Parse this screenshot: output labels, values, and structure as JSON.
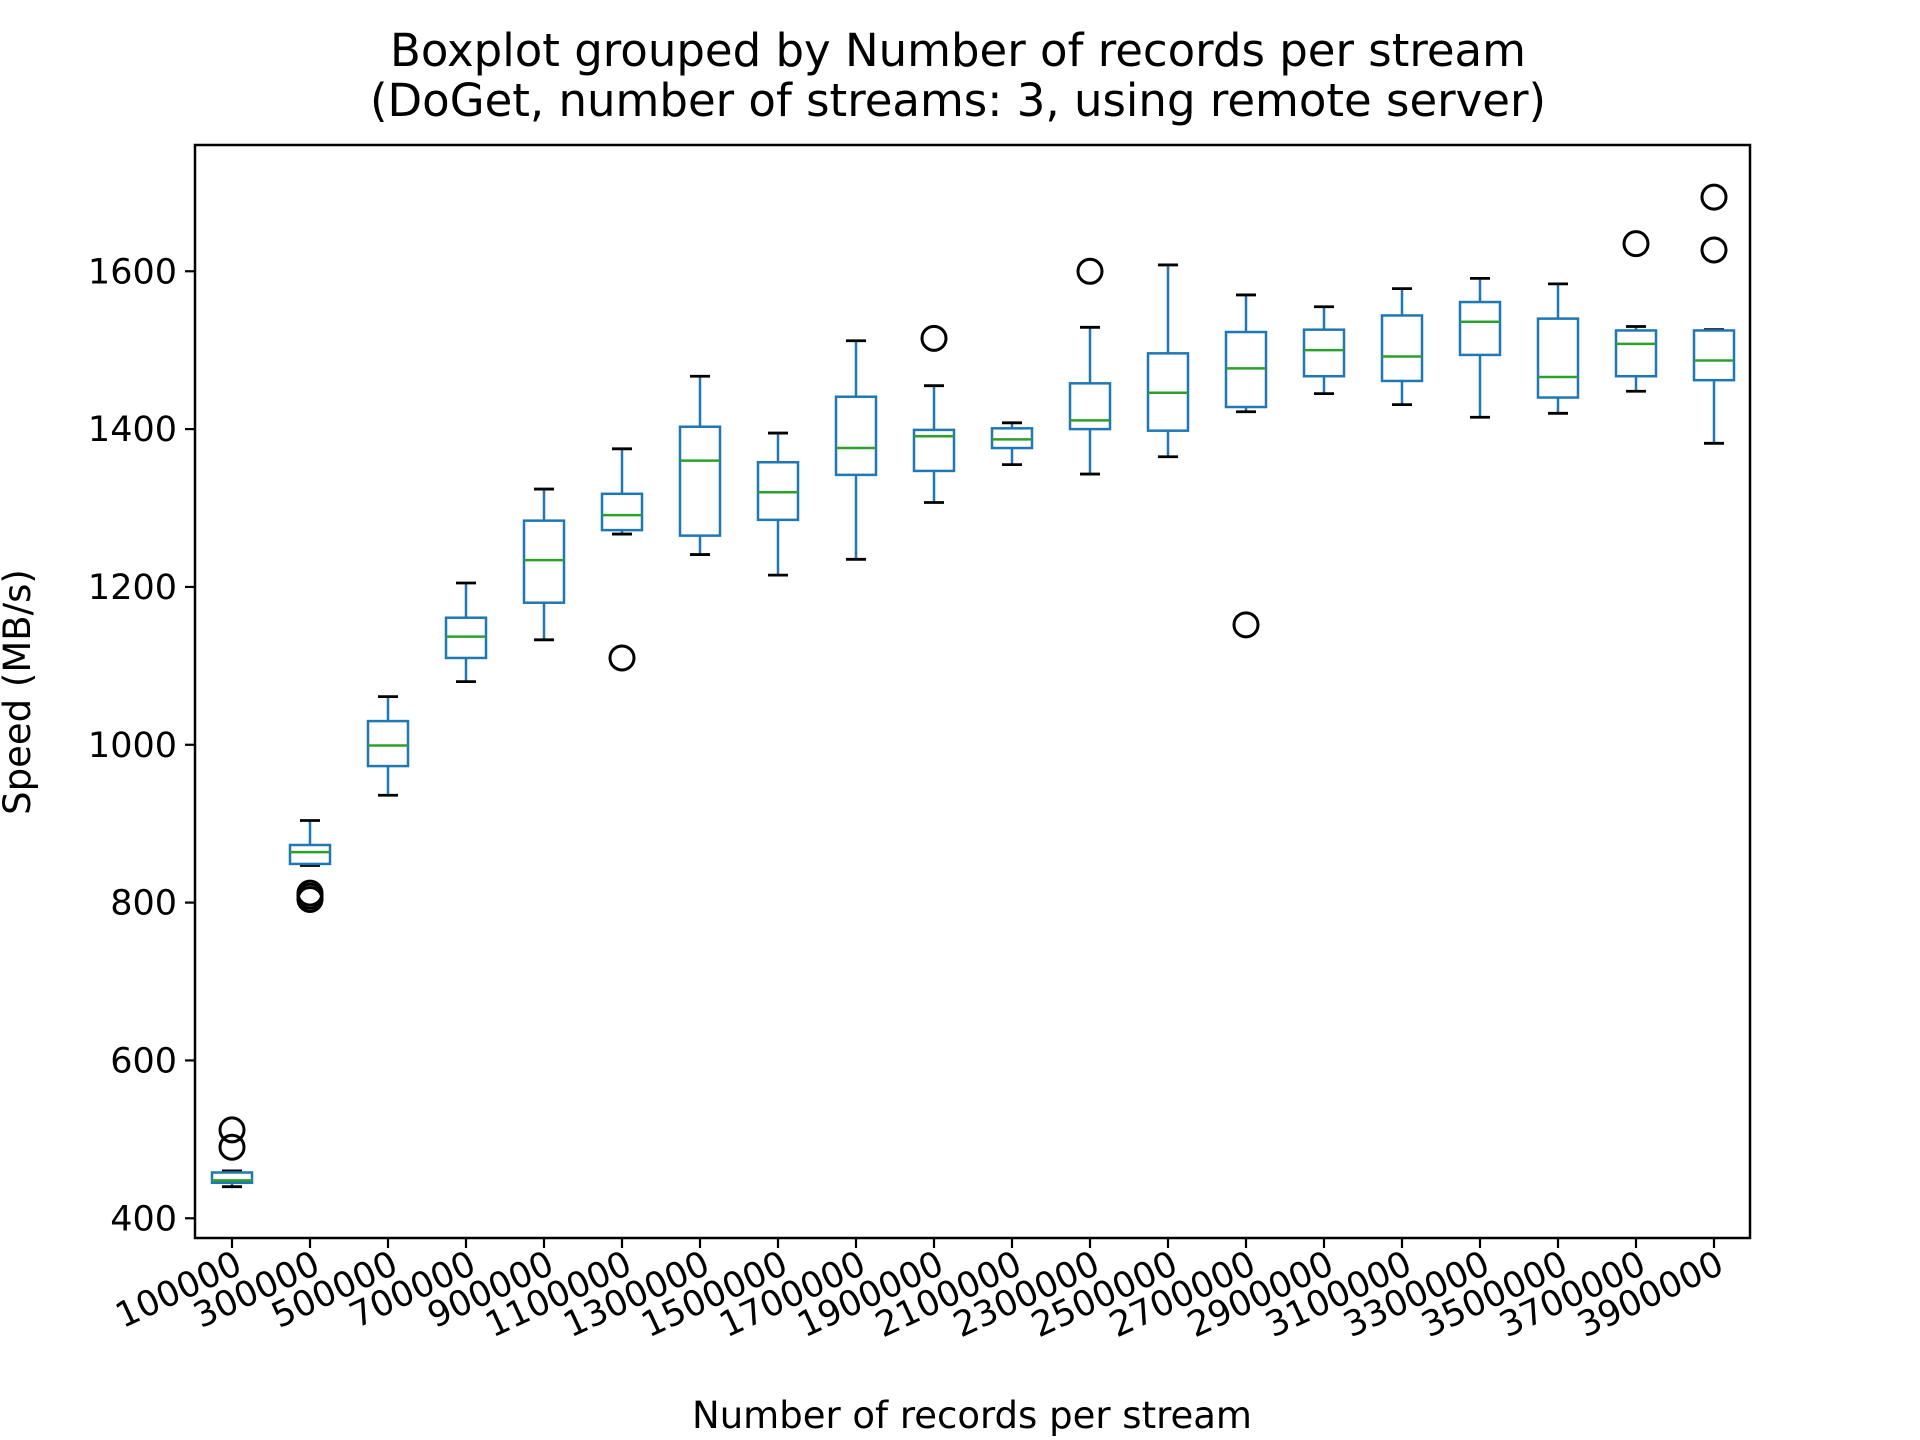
{
  "chart_data": {
    "type": "boxplot",
    "title": "Boxplot grouped by Number of records per stream",
    "subtitle": "(DoGet, number of streams: 3, using remote server)",
    "xlabel": "Number of records per stream",
    "ylabel": "Speed (MB/s)",
    "ylim": [
      375,
      1760
    ],
    "yticks": [
      400,
      600,
      800,
      1000,
      1200,
      1400,
      1600
    ],
    "grid": false,
    "colors": {
      "box": "#1f77b4",
      "median": "#2ca02c",
      "cap": "#000000",
      "outlier": "#000000",
      "frame": "#000000"
    },
    "categories": [
      "100000",
      "300000",
      "500000",
      "700000",
      "900000",
      "1100000",
      "1300000",
      "1500000",
      "1700000",
      "1900000",
      "2100000",
      "2300000",
      "2500000",
      "2700000",
      "2900000",
      "3100000",
      "3300000",
      "3500000",
      "3700000",
      "3900000"
    ],
    "boxes": [
      {
        "whislo": 440,
        "q1": 445,
        "med": 448,
        "q3": 458,
        "whishi": 460,
        "fliers": [
          490,
          512
        ]
      },
      {
        "whislo": 847,
        "q1": 849,
        "med": 864,
        "q3": 873,
        "whishi": 904,
        "fliers": [
          804,
          808,
          812
        ]
      },
      {
        "whislo": 936,
        "q1": 973,
        "med": 999,
        "q3": 1030,
        "whishi": 1061,
        "fliers": []
      },
      {
        "whislo": 1080,
        "q1": 1110,
        "med": 1137,
        "q3": 1161,
        "whishi": 1205,
        "fliers": []
      },
      {
        "whislo": 1133,
        "q1": 1180,
        "med": 1234,
        "q3": 1284,
        "whishi": 1324,
        "fliers": []
      },
      {
        "whislo": 1267,
        "q1": 1272,
        "med": 1291,
        "q3": 1318,
        "whishi": 1375,
        "fliers": [
          1110
        ]
      },
      {
        "whislo": 1241,
        "q1": 1265,
        "med": 1360,
        "q3": 1403,
        "whishi": 1467,
        "fliers": []
      },
      {
        "whislo": 1215,
        "q1": 1285,
        "med": 1320,
        "q3": 1358,
        "whishi": 1395,
        "fliers": []
      },
      {
        "whislo": 1235,
        "q1": 1342,
        "med": 1376,
        "q3": 1441,
        "whishi": 1512,
        "fliers": []
      },
      {
        "whislo": 1307,
        "q1": 1347,
        "med": 1391,
        "q3": 1399,
        "whishi": 1455,
        "fliers": [
          1515
        ]
      },
      {
        "whislo": 1355,
        "q1": 1376,
        "med": 1387,
        "q3": 1401,
        "whishi": 1408,
        "fliers": []
      },
      {
        "whislo": 1343,
        "q1": 1400,
        "med": 1411,
        "q3": 1458,
        "whishi": 1529,
        "fliers": [
          1600
        ]
      },
      {
        "whislo": 1365,
        "q1": 1398,
        "med": 1446,
        "q3": 1496,
        "whishi": 1608,
        "fliers": []
      },
      {
        "whislo": 1422,
        "q1": 1428,
        "med": 1477,
        "q3": 1523,
        "whishi": 1570,
        "fliers": [
          1152
        ]
      },
      {
        "whislo": 1445,
        "q1": 1467,
        "med": 1500,
        "q3": 1526,
        "whishi": 1555,
        "fliers": []
      },
      {
        "whislo": 1431,
        "q1": 1461,
        "med": 1492,
        "q3": 1544,
        "whishi": 1578,
        "fliers": []
      },
      {
        "whislo": 1415,
        "q1": 1494,
        "med": 1536,
        "q3": 1561,
        "whishi": 1591,
        "fliers": []
      },
      {
        "whislo": 1420,
        "q1": 1440,
        "med": 1466,
        "q3": 1540,
        "whishi": 1584,
        "fliers": []
      },
      {
        "whislo": 1448,
        "q1": 1467,
        "med": 1508,
        "q3": 1525,
        "whishi": 1530,
        "fliers": [
          1635
        ]
      },
      {
        "whislo": 1382,
        "q1": 1462,
        "med": 1487,
        "q3": 1525,
        "whishi": 1526,
        "fliers": [
          1627,
          1694
        ]
      }
    ]
  }
}
